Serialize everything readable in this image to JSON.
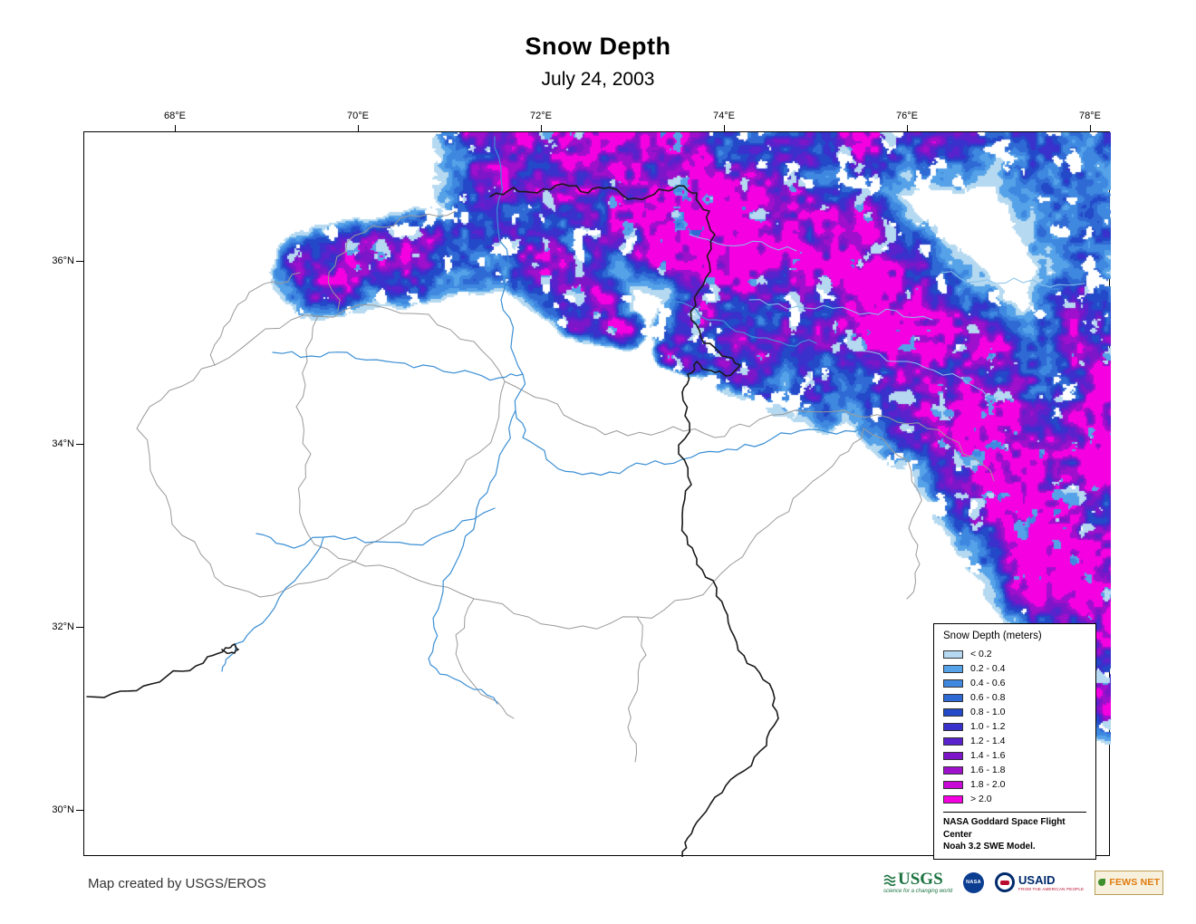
{
  "title": "Snow Depth",
  "subtitle": "July 24, 2003",
  "map": {
    "lon_tick_labels": [
      "68°E",
      "70°E",
      "72°E",
      "74°E",
      "76°E",
      "78°E"
    ],
    "lat_tick_labels": [
      "36°N",
      "34°N",
      "32°N",
      "30°N"
    ]
  },
  "legend": {
    "title": "Snow Depth (meters)",
    "items": [
      {
        "label": "< 0.2",
        "color": "#b5d9f0"
      },
      {
        "label": "0.2 - 0.4",
        "color": "#55a2e8"
      },
      {
        "label": "0.4 - 0.6",
        "color": "#3f88e0"
      },
      {
        "label": "0.6 - 0.8",
        "color": "#2f6ad4"
      },
      {
        "label": "0.8 - 1.0",
        "color": "#2349c8"
      },
      {
        "label": "1.0 - 1.2",
        "color": "#3a30cc"
      },
      {
        "label": "1.2 - 1.4",
        "color": "#5a22cc"
      },
      {
        "label": "1.4 - 1.6",
        "color": "#7c16c8"
      },
      {
        "label": "1.6 - 1.8",
        "color": "#9e10cc"
      },
      {
        "label": "1.8 - 2.0",
        "color": "#c708d6"
      },
      {
        "label": "> 2.0",
        "color": "#f500e0"
      }
    ],
    "source_line1": "NASA Goddard Space Flight Center",
    "source_line2": "Noah 3.2 SWE Model."
  },
  "footer": {
    "credit": "Map created by USGS/EROS"
  },
  "logos": {
    "usgs": {
      "name": "USGS",
      "tagline": "science for a changing world"
    },
    "nasa": {
      "name": "NASA"
    },
    "usaid": {
      "name": "USAID",
      "tagline": "FROM THE AMERICAN PEOPLE"
    },
    "fewsnet": {
      "name": "FEWS NET"
    }
  },
  "map_colors": {
    "river": "#3b8fd4",
    "stream": "#86c2ea",
    "watershed_boundary": "#9a9a9a",
    "country_boundary": "#1a1a1a"
  }
}
